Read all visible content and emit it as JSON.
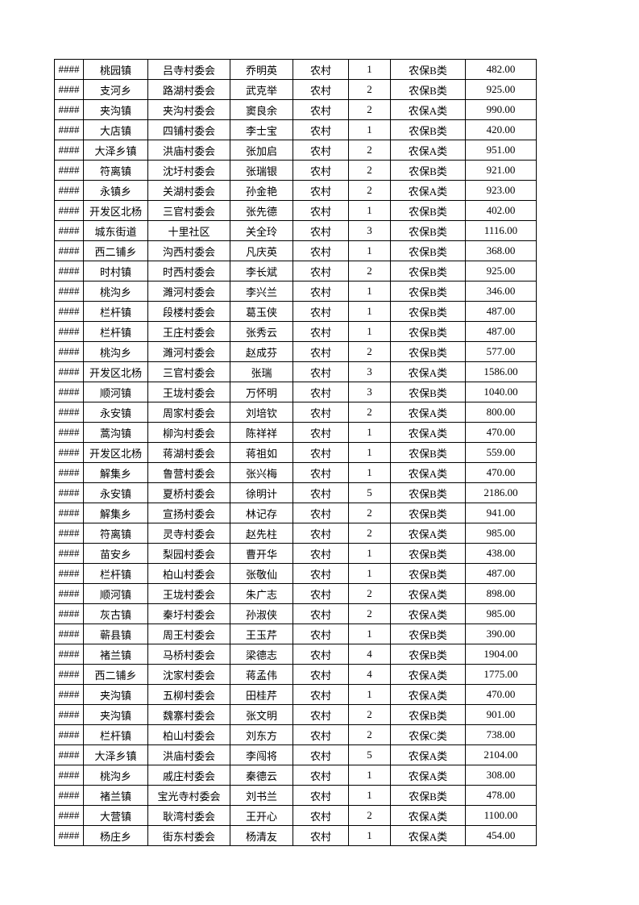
{
  "table": {
    "rows": [
      [
        "####",
        "桃园镇",
        "吕寺村委会",
        "乔明英",
        "农村",
        "1",
        "农保B类",
        "482.00"
      ],
      [
        "####",
        "支河乡",
        "路湖村委会",
        "武克举",
        "农村",
        "2",
        "农保B类",
        "925.00"
      ],
      [
        "####",
        "夹沟镇",
        "夹沟村委会",
        "窦良余",
        "农村",
        "2",
        "农保A类",
        "990.00"
      ],
      [
        "####",
        "大店镇",
        "四铺村委会",
        "李士宝",
        "农村",
        "1",
        "农保B类",
        "420.00"
      ],
      [
        "####",
        "大泽乡镇",
        "洪庙村委会",
        "张加启",
        "农村",
        "2",
        "农保A类",
        "951.00"
      ],
      [
        "####",
        "符离镇",
        "沈圩村委会",
        "张瑞银",
        "农村",
        "2",
        "农保B类",
        "921.00"
      ],
      [
        "####",
        "永镇乡",
        "关湖村委会",
        "孙金艳",
        "农村",
        "2",
        "农保A类",
        "923.00"
      ],
      [
        "####",
        "开发区北杨",
        "三官村委会",
        "张先德",
        "农村",
        "1",
        "农保B类",
        "402.00"
      ],
      [
        "####",
        "城东街道",
        "十里社区",
        "关全玲",
        "农村",
        "3",
        "农保B类",
        "1116.00"
      ],
      [
        "####",
        "西二铺乡",
        "沟西村委会",
        "凡庆英",
        "农村",
        "1",
        "农保B类",
        "368.00"
      ],
      [
        "####",
        "时村镇",
        "时西村委会",
        "李长斌",
        "农村",
        "2",
        "农保B类",
        "925.00"
      ],
      [
        "####",
        "桃沟乡",
        "濉河村委会",
        "李兴兰",
        "农村",
        "1",
        "农保B类",
        "346.00"
      ],
      [
        "####",
        "栏杆镇",
        "段楼村委会",
        "葛玉侠",
        "农村",
        "1",
        "农保B类",
        "487.00"
      ],
      [
        "####",
        "栏杆镇",
        "王庄村委会",
        "张秀云",
        "农村",
        "1",
        "农保B类",
        "487.00"
      ],
      [
        "####",
        "桃沟乡",
        "濉河村委会",
        "赵成芬",
        "农村",
        "2",
        "农保B类",
        "577.00"
      ],
      [
        "####",
        "开发区北杨",
        "三官村委会",
        "张瑞",
        "农村",
        "3",
        "农保A类",
        "1586.00"
      ],
      [
        "####",
        "顺河镇",
        "王垅村委会",
        "万怀明",
        "农村",
        "3",
        "农保B类",
        "1040.00"
      ],
      [
        "####",
        "永安镇",
        "周家村委会",
        "刘培钦",
        "农村",
        "2",
        "农保A类",
        "800.00"
      ],
      [
        "####",
        "蒿沟镇",
        "柳沟村委会",
        "陈祥祥",
        "农村",
        "1",
        "农保A类",
        "470.00"
      ],
      [
        "####",
        "开发区北杨",
        "蒋湖村委会",
        "蒋祖如",
        "农村",
        "1",
        "农保B类",
        "559.00"
      ],
      [
        "####",
        "解集乡",
        "鲁营村委会",
        "张兴梅",
        "农村",
        "1",
        "农保A类",
        "470.00"
      ],
      [
        "####",
        "永安镇",
        "夏桥村委会",
        "徐明计",
        "农村",
        "5",
        "农保B类",
        "2186.00"
      ],
      [
        "####",
        "解集乡",
        "宣扬村委会",
        "林记存",
        "农村",
        "2",
        "农保B类",
        "941.00"
      ],
      [
        "####",
        "符离镇",
        "灵寺村委会",
        "赵先柱",
        "农村",
        "2",
        "农保A类",
        "985.00"
      ],
      [
        "####",
        "苗安乡",
        "梨园村委会",
        "曹开华",
        "农村",
        "1",
        "农保B类",
        "438.00"
      ],
      [
        "####",
        "栏杆镇",
        "柏山村委会",
        "张敬仙",
        "农村",
        "1",
        "农保B类",
        "487.00"
      ],
      [
        "####",
        "顺河镇",
        "王垅村委会",
        "朱广志",
        "农村",
        "2",
        "农保A类",
        "898.00"
      ],
      [
        "####",
        "灰古镇",
        "秦圩村委会",
        "孙淑侠",
        "农村",
        "2",
        "农保A类",
        "985.00"
      ],
      [
        "####",
        "蕲县镇",
        "周王村委会",
        "王玉芹",
        "农村",
        "1",
        "农保B类",
        "390.00"
      ],
      [
        "####",
        "褚兰镇",
        "马桥村委会",
        "梁德志",
        "农村",
        "4",
        "农保B类",
        "1904.00"
      ],
      [
        "####",
        "西二铺乡",
        "沈家村委会",
        "蒋孟伟",
        "农村",
        "4",
        "农保A类",
        "1775.00"
      ],
      [
        "####",
        "夹沟镇",
        "五柳村委会",
        "田桂芹",
        "农村",
        "1",
        "农保A类",
        "470.00"
      ],
      [
        "####",
        "夹沟镇",
        "魏寨村委会",
        "张文明",
        "农村",
        "2",
        "农保B类",
        "901.00"
      ],
      [
        "####",
        "栏杆镇",
        "柏山村委会",
        "刘东方",
        "农村",
        "2",
        "农保C类",
        "738.00"
      ],
      [
        "####",
        "大泽乡镇",
        "洪庙村委会",
        "李闯将",
        "农村",
        "5",
        "农保A类",
        "2104.00"
      ],
      [
        "####",
        "桃沟乡",
        "戚庄村委会",
        "秦德云",
        "农村",
        "1",
        "农保A类",
        "308.00"
      ],
      [
        "####",
        "褚兰镇",
        "宝光寺村委会",
        "刘书兰",
        "农村",
        "1",
        "农保B类",
        "478.00"
      ],
      [
        "####",
        "大营镇",
        "耿湾村委会",
        "王开心",
        "农村",
        "2",
        "农保A类",
        "1100.00"
      ],
      [
        "####",
        "杨庄乡",
        "街东村委会",
        "杨清友",
        "农村",
        "1",
        "农保A类",
        "454.00"
      ]
    ]
  }
}
